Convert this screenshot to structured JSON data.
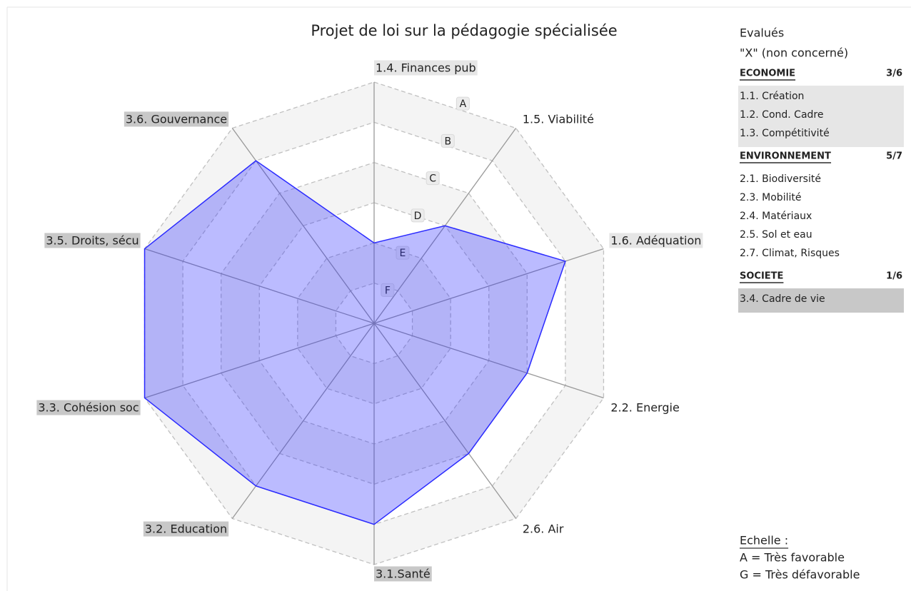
{
  "chart_data": {
    "type": "radar",
    "title": "Projet de loi sur la pédagogie spécialisée",
    "categories": [
      "1.4. Finances pub",
      "1.5. Viabilité",
      "1.6. Adéquation",
      "2.2. Energie",
      "2.6. Air",
      "3.1.Santé",
      "3.2. Education",
      "3.3. Cohésion soc",
      "3.5. Droits, sécu",
      "3.6. Gouvernance"
    ],
    "label_colors": [
      "#e6e6e6",
      null,
      "#e6e6e6",
      null,
      null,
      "#c8c8c8",
      "#c8c8c8",
      "#c8c8c8",
      "#c8c8c8",
      "#c8c8c8"
    ],
    "series": [
      {
        "color": "#2a2aff",
        "values": [
          2,
          3,
          5,
          4,
          4,
          5,
          5,
          6,
          6,
          5
        ]
      }
    ],
    "rlim": [
      0,
      6
    ],
    "rticks": [
      {
        "value": 1,
        "label": "F"
      },
      {
        "value": 2,
        "label": "E"
      },
      {
        "value": 3,
        "label": "D"
      },
      {
        "value": 4,
        "label": "C"
      },
      {
        "value": 5,
        "label": "B"
      },
      {
        "value": 6,
        "label": "A"
      }
    ],
    "grid": true
  },
  "side_panel": {
    "title": "Evalués",
    "subtitle": "\"X\" (non concerné)",
    "groups": [
      {
        "name": "ECONOMIE",
        "score": "3/6",
        "color": "#e6e6e6",
        "items": [
          "1.1. Création",
          "1.2. Cond. Cadre",
          "1.3. Compétitivité"
        ]
      },
      {
        "name": "ENVIRONNEMENT",
        "score": "5/7",
        "color": null,
        "items": [
          "2.1. Biodiversité",
          "2.3. Mobilité",
          "2.4. Matériaux",
          "2.5. Sol et eau",
          "2.7. Climat, Risques"
        ]
      },
      {
        "name": "SOCIETE",
        "score": "1/6",
        "color": "#c8c8c8",
        "items": [
          "3.4. Cadre de vie"
        ]
      }
    ],
    "scale": {
      "title": "Echelle :",
      "lines": [
        "A = Très favorable",
        "G = Très défavorable"
      ]
    }
  }
}
